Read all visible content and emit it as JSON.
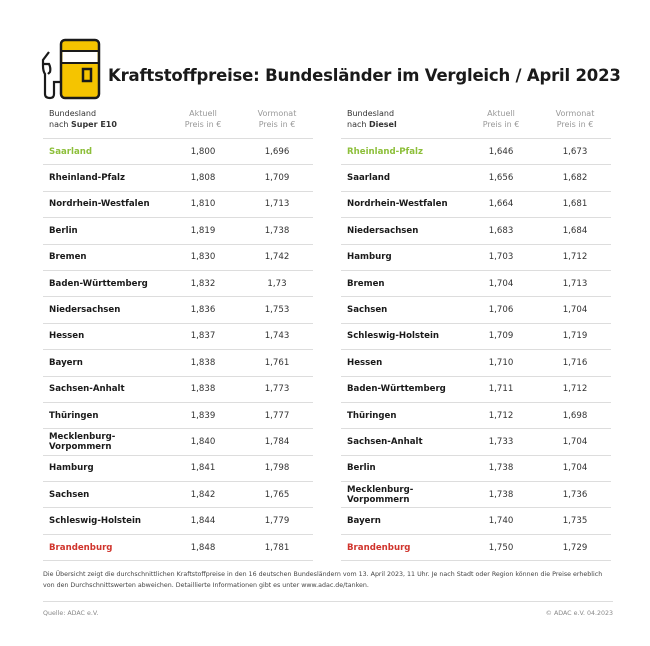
{
  "title": "Kraftstoffpreise: Bundesländer im Vergleich / April 2023",
  "colors": {
    "best": "#8dbf3a",
    "worst": "#d0342c",
    "icon_yellow": "#f5c400"
  },
  "left": {
    "header": {
      "line1": "Bundesland",
      "prefix": "nach ",
      "fuel": "Super E10",
      "current_line1": "Aktuell",
      "current_line2": "Preis in €",
      "prev_line1": "Vormonat",
      "prev_line2": "Preis in €"
    },
    "rows": [
      {
        "state": "Saarland",
        "current": "1,800",
        "previous": "1,696",
        "highlight": "best"
      },
      {
        "state": "Rheinland-Pfalz",
        "current": "1,808",
        "previous": "1,709"
      },
      {
        "state": "Nordrhein-Westfalen",
        "current": "1,810",
        "previous": "1,713"
      },
      {
        "state": "Berlin",
        "current": "1,819",
        "previous": "1,738"
      },
      {
        "state": "Bremen",
        "current": "1,830",
        "previous": "1,742"
      },
      {
        "state": "Baden-Württemberg",
        "current": "1,832",
        "previous": "1,73"
      },
      {
        "state": "Niedersachsen",
        "current": "1,836",
        "previous": "1,753"
      },
      {
        "state": "Hessen",
        "current": "1,837",
        "previous": "1,743"
      },
      {
        "state": "Bayern",
        "current": "1,838",
        "previous": "1,761"
      },
      {
        "state": "Sachsen-Anhalt",
        "current": "1,838",
        "previous": "1,773"
      },
      {
        "state": "Thüringen",
        "current": "1,839",
        "previous": "1,777"
      },
      {
        "state": "Mecklenburg-Vorpommern",
        "current": "1,840",
        "previous": "1,784"
      },
      {
        "state": "Hamburg",
        "current": "1,841",
        "previous": "1,798"
      },
      {
        "state": "Sachsen",
        "current": "1,842",
        "previous": "1,765"
      },
      {
        "state": "Schleswig-Holstein",
        "current": "1,844",
        "previous": "1,779"
      },
      {
        "state": "Brandenburg",
        "current": "1,848",
        "previous": "1,781",
        "highlight": "worst"
      }
    ]
  },
  "right": {
    "header": {
      "line1": "Bundesland",
      "prefix": "nach ",
      "fuel": "Diesel",
      "current_line1": "Aktuell",
      "current_line2": "Preis in €",
      "prev_line1": "Vormonat",
      "prev_line2": "Preis in €"
    },
    "rows": [
      {
        "state": "Rheinland-Pfalz",
        "current": "1,646",
        "previous": "1,673",
        "highlight": "best"
      },
      {
        "state": "Saarland",
        "current": "1,656",
        "previous": "1,682"
      },
      {
        "state": "Nordrhein-Westfalen",
        "current": "1,664",
        "previous": "1,681"
      },
      {
        "state": "Niedersachsen",
        "current": "1,683",
        "previous": "1,684"
      },
      {
        "state": "Hamburg",
        "current": "1,703",
        "previous": "1,712"
      },
      {
        "state": "Bremen",
        "current": "1,704",
        "previous": "1,713"
      },
      {
        "state": "Sachsen",
        "current": "1,706",
        "previous": "1,704"
      },
      {
        "state": "Schleswig-Holstein",
        "current": "1,709",
        "previous": "1,719"
      },
      {
        "state": "Hessen",
        "current": "1,710",
        "previous": "1,716"
      },
      {
        "state": "Baden-Württemberg",
        "current": "1,711",
        "previous": "1,712"
      },
      {
        "state": "Thüringen",
        "current": "1,712",
        "previous": "1,698"
      },
      {
        "state": "Sachsen-Anhalt",
        "current": "1,733",
        "previous": "1,704"
      },
      {
        "state": "Berlin",
        "current": "1,738",
        "previous": "1,704"
      },
      {
        "state": "Mecklenburg-Vorpommern",
        "current": "1,738",
        "previous": "1,736"
      },
      {
        "state": "Bayern",
        "current": "1,740",
        "previous": "1,735"
      },
      {
        "state": "Brandenburg",
        "current": "1,750",
        "previous": "1,729",
        "highlight": "worst"
      }
    ]
  },
  "note": "Die Übersicht zeigt die durchschnittlichen Kraftstoffpreise in den 16 deutschen Bundesländern vom 13. April 2023, 11 Uhr. Je nach Stadt oder Region können die Preise erheblich von den Durchschnittswerten abweichen. Detaillierte Informationen gibt es unter www.adac.de/tanken.",
  "source": "Quelle: ADAC e.V.",
  "copyright": "© ADAC e.V. 04.2023"
}
